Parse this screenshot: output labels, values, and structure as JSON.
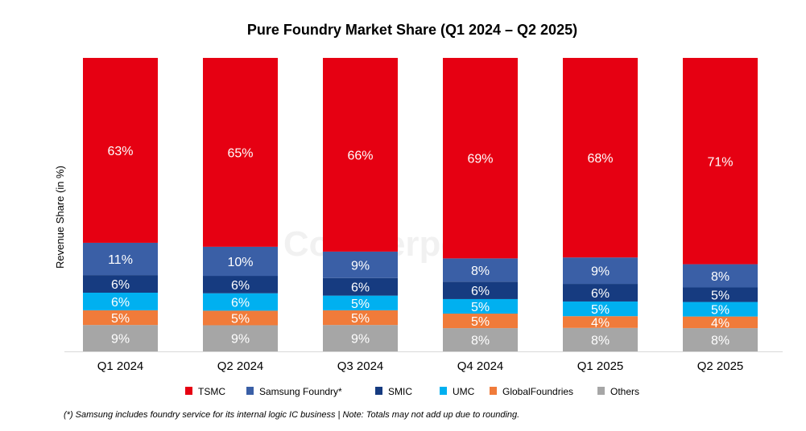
{
  "chart_data": {
    "type": "bar",
    "stacked": true,
    "title": "Pure Foundry Market Share (Q1 2024 – Q2 2025)",
    "xlabel": "",
    "ylabel": "Revenue Share (in %)",
    "ylim": [
      0,
      100
    ],
    "grid": false,
    "legend_position": "bottom",
    "categories": [
      "Q1 2024",
      "Q2 2024",
      "Q3 2024",
      "Q4 2024",
      "Q1 2025",
      "Q2 2025"
    ],
    "series": [
      {
        "name": "Others",
        "color": "#a6a6a6",
        "values": [
          9,
          9,
          9,
          8,
          8,
          8
        ]
      },
      {
        "name": "GlobalFoundries",
        "color": "#f07b3a",
        "values": [
          5,
          5,
          5,
          5,
          4,
          4
        ]
      },
      {
        "name": "UMC",
        "color": "#00b0f0",
        "values": [
          6,
          6,
          5,
          5,
          5,
          5
        ]
      },
      {
        "name": "SMIC",
        "color": "#163b80",
        "values": [
          6,
          6,
          6,
          6,
          6,
          5
        ]
      },
      {
        "name": "Samsung Foundry*",
        "color": "#3a5fa6",
        "values": [
          11,
          10,
          9,
          8,
          9,
          8
        ]
      },
      {
        "name": "TSMC",
        "color": "#e60012",
        "values": [
          63,
          65,
          66,
          69,
          68,
          71
        ]
      }
    ],
    "legend_order": [
      "TSMC",
      "Samsung Foundry*",
      "SMIC",
      "UMC",
      "GlobalFoundries",
      "Others"
    ],
    "data_label_suffix": "%",
    "footnote": "(*) Samsung includes foundry service for its internal logic IC business | Note: Totals may not add up due to rounding.",
    "watermark": "Counterpoint"
  }
}
